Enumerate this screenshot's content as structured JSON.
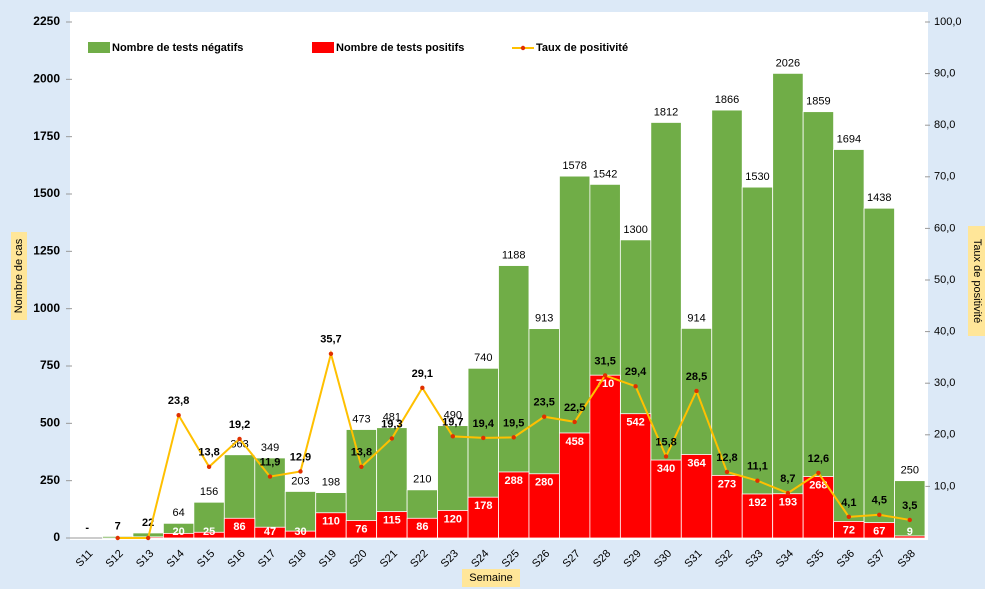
{
  "chart_data": {
    "type": "bar",
    "categories": [
      "S11",
      "S12",
      "S13",
      "S14",
      "S15",
      "S16",
      "S17",
      "S18",
      "S19",
      "S20",
      "S21",
      "S22",
      "S23",
      "S24",
      "S25",
      "S26",
      "S27",
      "S28",
      "S29",
      "S30",
      "S31",
      "S32",
      "S33",
      "S34",
      "S35",
      "S36",
      "S37",
      "S38"
    ],
    "x_label": "Semaine",
    "y_label": "Nombre de cas",
    "y2_label": "Taux de positivité",
    "series": [
      {
        "name": "Nombre de tests négatifs",
        "color": "#70ad47",
        "values": [
          null,
          7,
          22,
          64,
          156,
          363,
          349,
          203,
          198,
          473,
          481,
          210,
          490,
          740,
          1188,
          913,
          1578,
          1542,
          1300,
          1812,
          914,
          1866,
          1530,
          2026,
          1859,
          1694,
          1438,
          250
        ],
        "value_labels": [
          "-",
          "7",
          "22",
          "64",
          "156",
          "363",
          "349",
          "203",
          "198",
          "473",
          "481",
          "210",
          "490",
          "740",
          "1188",
          "913",
          "1578",
          "1542",
          "1300",
          "1812",
          "914",
          "1866",
          "1530",
          "2026",
          "1859",
          "1694",
          "1438",
          "250"
        ]
      },
      {
        "name": "Nombre de tests positifs",
        "color": "#ff0000",
        "values": [
          null,
          0,
          5,
          20,
          25,
          86,
          47,
          30,
          110,
          76,
          115,
          86,
          120,
          178,
          288,
          280,
          458,
          710,
          542,
          340,
          364,
          273,
          192,
          193,
          268,
          72,
          67,
          9
        ],
        "value_labels": [
          null,
          null,
          null,
          "20",
          "25",
          "86",
          "47",
          "30",
          "110",
          "76",
          "115",
          "86",
          "120",
          "178",
          "288",
          "280",
          "458",
          "710",
          "542",
          "340",
          "364",
          "273",
          "192",
          "193",
          "268",
          "72",
          "67",
          "9"
        ]
      },
      {
        "name": "Taux de positivité",
        "color": "#ffc000",
        "axis": "y2",
        "values": [
          null,
          0,
          0,
          23.8,
          13.8,
          19.2,
          11.9,
          12.9,
          35.7,
          13.8,
          19.3,
          29.1,
          19.7,
          19.4,
          19.5,
          23.5,
          22.5,
          31.5,
          29.4,
          15.8,
          28.5,
          12.8,
          11.1,
          8.7,
          12.6,
          4.1,
          4.5,
          3.5
        ],
        "value_labels": [
          null,
          null,
          null,
          "23,8",
          "13,8",
          "19,2",
          "11,9",
          "12,9",
          "35,7",
          "13,8",
          "19,3",
          "29,1",
          "19,7",
          "19,4",
          "19,5",
          "23,5",
          "22,5",
          "31,5",
          "29,4",
          "15,8",
          "28,5",
          "12,8",
          "11,1",
          "8,7",
          "12,6",
          "4,1",
          "4,5",
          "3,5"
        ]
      }
    ],
    "ylim": [
      0,
      2250
    ],
    "yticks": [
      0,
      250,
      500,
      750,
      1000,
      1250,
      1500,
      1750,
      2000,
      2250
    ],
    "y2lim": [
      0,
      100
    ],
    "y2ticks": [
      {
        "value": 10,
        "label": "10,0"
      },
      {
        "value": 20,
        "label": "20,0"
      },
      {
        "value": 30,
        "label": "30,0"
      },
      {
        "value": 40,
        "label": "40,0"
      },
      {
        "value": 50,
        "label": "50,0"
      },
      {
        "value": 60,
        "label": "60,0"
      },
      {
        "value": 70,
        "label": "70,0"
      },
      {
        "value": 80,
        "label": "80,0"
      },
      {
        "value": 90,
        "label": "90,0"
      },
      {
        "value": 100,
        "label": "100,0"
      }
    ],
    "legend": "top"
  }
}
